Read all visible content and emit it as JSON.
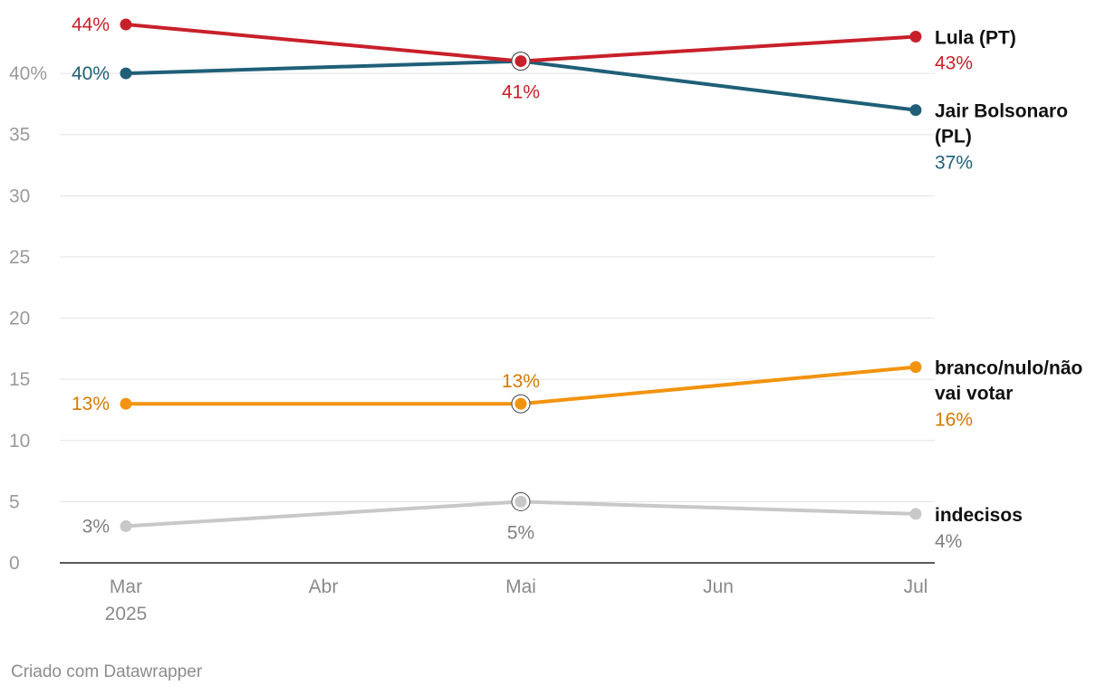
{
  "chart_data": {
    "type": "line",
    "x": [
      "Mar",
      "Mai",
      "Jul"
    ],
    "x_ticks": [
      {
        "label": "Mar",
        "sublabel": "2025"
      },
      {
        "label": "Abr",
        "sublabel": ""
      },
      {
        "label": "Mai",
        "sublabel": ""
      },
      {
        "label": "Jun",
        "sublabel": ""
      },
      {
        "label": "Jul",
        "sublabel": ""
      }
    ],
    "ylim": [
      0,
      45
    ],
    "y_ticks": [
      "0",
      "5",
      "10",
      "15",
      "20",
      "25",
      "30",
      "35",
      "40%"
    ],
    "grid": true,
    "legend": "direct labels at line ends",
    "series": [
      {
        "name": "Lula (PT)",
        "color": "#c8202a",
        "label_color": "#c8202a",
        "values": [
          44,
          41,
          43
        ],
        "point_labels": [
          "44%",
          "41%",
          "43%"
        ]
      },
      {
        "name_lines": [
          "Jair Bolsonaro",
          "(PL)"
        ],
        "color": "#1f5f78",
        "label_color": "#1f5f78",
        "values": [
          40,
          41,
          37
        ],
        "point_labels": [
          "40%",
          "",
          "37%"
        ]
      },
      {
        "name_lines": [
          "branco/nulo/não",
          "vai votar"
        ],
        "color": "#f2930f",
        "label_color": "#d27a00",
        "values": [
          13,
          13,
          16
        ],
        "point_labels": [
          "13%",
          "13%",
          "16%"
        ]
      },
      {
        "name": "indecisos",
        "color": "#c8c8c8",
        "label_color": "#808080",
        "values": [
          3,
          5,
          4
        ],
        "point_labels": [
          "3%",
          "5%",
          "4%"
        ]
      }
    ]
  },
  "credit": "Criado com Datawrapper"
}
